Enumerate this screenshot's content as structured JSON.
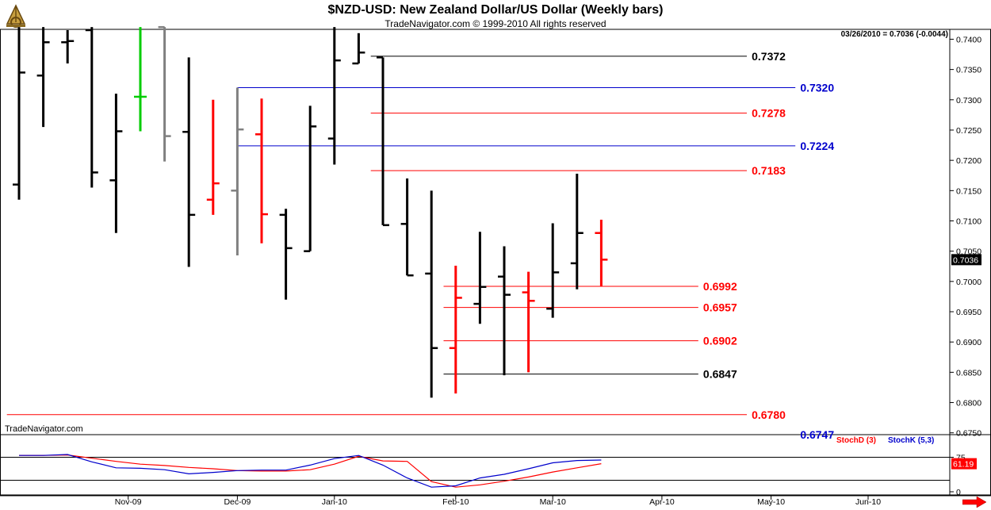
{
  "header": {
    "title": "$NZD-USD:  New Zealand Dollar/US Dollar  (Weekly bars)",
    "subtitle": "TradeNavigator.com © 1999-2010 All rights reserved",
    "quote": "03/26/2010 = 0.7036 (-0.0044)"
  },
  "watermark": "TradeNavigator.com",
  "colors": {
    "up_bar": "#000000",
    "down_bar": "#ff0000",
    "green_bar": "#00cc00",
    "gray_bar": "#808080",
    "level_red": "#ff0000",
    "level_blue": "#0000cc",
    "level_black": "#000000",
    "stoch_d": "#ff0000",
    "stoch_k": "#0000cc"
  },
  "chart_data": [
    {
      "type": "ohlc",
      "title": "$NZD-USD:  New Zealand Dollar/US Dollar  (Weekly bars)",
      "ylim": [
        0.6747,
        0.7415
      ],
      "y_ticks": [
        {
          "value": 0.675,
          "label": "0.6750"
        },
        {
          "value": 0.68,
          "label": "0.6800"
        },
        {
          "value": 0.685,
          "label": "0.6850"
        },
        {
          "value": 0.69,
          "label": "0.6900"
        },
        {
          "value": 0.695,
          "label": "0.6950"
        },
        {
          "value": 0.7,
          "label": "0.7000"
        },
        {
          "value": 0.705,
          "label": "0.7050"
        },
        {
          "value": 0.71,
          "label": "0.7100"
        },
        {
          "value": 0.715,
          "label": "0.7150"
        },
        {
          "value": 0.72,
          "label": "0.7200"
        },
        {
          "value": 0.725,
          "label": "0.7250"
        },
        {
          "value": 0.73,
          "label": "0.7300"
        },
        {
          "value": 0.735,
          "label": "0.7350"
        },
        {
          "value": 0.74,
          "label": "0.7400"
        }
      ],
      "x_ticks": [
        {
          "index": 4.5,
          "label": "Nov-09"
        },
        {
          "index": 9,
          "label": "Dec-09"
        },
        {
          "index": 13,
          "label": "Jan-10"
        },
        {
          "index": 18,
          "label": "Feb-10"
        },
        {
          "index": 22,
          "label": "Mar-10"
        },
        {
          "index": 26.5,
          "label": "Apr-10"
        },
        {
          "index": 31,
          "label": "May-10"
        },
        {
          "index": 35,
          "label": "Jun-10"
        }
      ],
      "x_max_index": 39.5,
      "last_price": {
        "value": 0.7036,
        "label": "0.7036"
      },
      "bars": [
        {
          "o": 0.716,
          "h": 0.742,
          "l": 0.7135,
          "c": 0.7345,
          "color": "black"
        },
        {
          "o": 0.734,
          "h": 0.742,
          "l": 0.7255,
          "c": 0.7395,
          "color": "black"
        },
        {
          "o": 0.7395,
          "h": 0.7415,
          "l": 0.736,
          "c": 0.7397,
          "color": "black"
        },
        {
          "o": 0.7415,
          "h": 0.742,
          "l": 0.7155,
          "c": 0.718,
          "color": "black"
        },
        {
          "o": 0.7167,
          "h": 0.731,
          "l": 0.708,
          "c": 0.7248,
          "color": "black"
        },
        {
          "o": 0.7305,
          "h": 0.742,
          "l": 0.7248,
          "c": 0.7305,
          "color": "green"
        },
        {
          "o": 0.742,
          "h": 0.742,
          "l": 0.7198,
          "c": 0.724,
          "color": "gray"
        },
        {
          "o": 0.7247,
          "h": 0.737,
          "l": 0.7024,
          "c": 0.711,
          "color": "black"
        },
        {
          "o": 0.7135,
          "h": 0.73,
          "l": 0.711,
          "c": 0.7162,
          "color": "red"
        },
        {
          "o": 0.715,
          "h": 0.732,
          "l": 0.7043,
          "c": 0.7251,
          "color": "gray"
        },
        {
          "o": 0.7243,
          "h": 0.7302,
          "l": 0.7063,
          "c": 0.7111,
          "color": "red"
        },
        {
          "o": 0.711,
          "h": 0.712,
          "l": 0.697,
          "c": 0.7055,
          "color": "black"
        },
        {
          "o": 0.705,
          "h": 0.729,
          "l": 0.705,
          "c": 0.7256,
          "color": "black"
        },
        {
          "o": 0.7236,
          "h": 0.742,
          "l": 0.7193,
          "c": 0.7365,
          "color": "black"
        },
        {
          "o": 0.736,
          "h": 0.741,
          "l": 0.736,
          "c": 0.7378,
          "color": "black"
        },
        {
          "o": 0.737,
          "h": 0.737,
          "l": 0.7093,
          "c": 0.7093,
          "color": "black"
        },
        {
          "o": 0.7095,
          "h": 0.717,
          "l": 0.701,
          "c": 0.701,
          "color": "black"
        },
        {
          "o": 0.7013,
          "h": 0.715,
          "l": 0.6808,
          "c": 0.689,
          "color": "black"
        },
        {
          "o": 0.689,
          "h": 0.7026,
          "l": 0.6815,
          "c": 0.6973,
          "color": "red"
        },
        {
          "o": 0.6963,
          "h": 0.7082,
          "l": 0.693,
          "c": 0.6991,
          "color": "black"
        },
        {
          "o": 0.7008,
          "h": 0.7058,
          "l": 0.6845,
          "c": 0.6978,
          "color": "black"
        },
        {
          "o": 0.6982,
          "h": 0.7016,
          "l": 0.685,
          "c": 0.6968,
          "color": "red"
        },
        {
          "o": 0.6955,
          "h": 0.7096,
          "l": 0.694,
          "c": 0.7015,
          "color": "black"
        },
        {
          "o": 0.703,
          "h": 0.7178,
          "l": 0.6987,
          "c": 0.708,
          "color": "black"
        },
        {
          "o": 0.708,
          "h": 0.7102,
          "l": 0.6992,
          "c": 0.7036,
          "color": "red"
        }
      ],
      "levels": [
        {
          "value": 0.7372,
          "label": "0.7372",
          "color": "black",
          "from_index": 14.5,
          "to_index": 30.0,
          "label_index": 30.2
        },
        {
          "value": 0.732,
          "label": "0.7320",
          "color": "blue",
          "from_index": 9.0,
          "to_index": 32.0,
          "label_index": 32.2
        },
        {
          "value": 0.7278,
          "label": "0.7278",
          "color": "red",
          "from_index": 14.5,
          "to_index": 30.0,
          "label_index": 30.2
        },
        {
          "value": 0.7224,
          "label": "0.7224",
          "color": "blue",
          "from_index": 9.0,
          "to_index": 32.0,
          "label_index": 32.2
        },
        {
          "value": 0.7183,
          "label": "0.7183",
          "color": "red",
          "from_index": 14.5,
          "to_index": 30.0,
          "label_index": 30.2
        },
        {
          "value": 0.6992,
          "label": "0.6992",
          "color": "red",
          "from_index": 17.5,
          "to_index": 28.0,
          "label_index": 28.2
        },
        {
          "value": 0.6957,
          "label": "0.6957",
          "color": "red",
          "from_index": 17.5,
          "to_index": 28.0,
          "label_index": 28.2
        },
        {
          "value": 0.6902,
          "label": "0.6902",
          "color": "red",
          "from_index": 17.5,
          "to_index": 28.0,
          "label_index": 28.2
        },
        {
          "value": 0.6847,
          "label": "0.6847",
          "color": "black",
          "from_index": 17.5,
          "to_index": 28.0,
          "label_index": 28.2
        },
        {
          "value": 0.678,
          "label": "0.6780",
          "color": "red",
          "from_index": -0.5,
          "to_index": 30.0,
          "label_index": 30.2
        },
        {
          "value": 0.6747,
          "label": "0.6747",
          "color": "blue",
          "from_index": 32.0,
          "to_index": 32.0,
          "label_index": 32.2
        }
      ]
    },
    {
      "type": "line",
      "title": "",
      "ylim": [
        0,
        100
      ],
      "y_ticks": [
        {
          "value": 0,
          "label": "0"
        },
        {
          "value": 75,
          "label": "75"
        }
      ],
      "reference_lines": [
        25,
        75
      ],
      "last_value_label": "61.19",
      "series": [
        {
          "name": "StochD (3)",
          "color": "red",
          "values": [
            79,
            79,
            80,
            73,
            66,
            60,
            57,
            53,
            50,
            46,
            45,
            45,
            48,
            60,
            77,
            67,
            66,
            22,
            10,
            15,
            23,
            32,
            43,
            52,
            61
          ]
        },
        {
          "name": "StochK (5,3)",
          "color": "blue",
          "values": [
            79,
            79,
            81,
            65,
            52,
            51,
            48,
            39,
            42,
            46,
            47,
            47,
            58,
            72,
            79,
            58,
            30,
            10,
            13,
            30,
            38,
            50,
            63,
            68,
            69
          ]
        }
      ]
    }
  ]
}
